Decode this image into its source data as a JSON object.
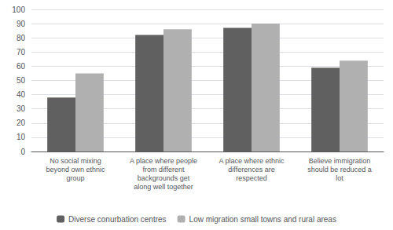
{
  "chart_data": {
    "type": "bar",
    "categories": [
      "No social mixing\nbeyond own ethnic\ngroup",
      "A place where people\nfrom different\nbackgrounds get\nalong well together",
      "A place where ethnic\ndifferences are\nrespected",
      "Believe immigration\nshould be reduced a\nlot"
    ],
    "series": [
      {
        "name": "Diverse conurbation centres",
        "color": "#606060",
        "values": [
          38,
          82,
          87,
          59
        ]
      },
      {
        "name": "Low migration small towns and rural areas",
        "color": "#b0b0b0",
        "values": [
          55,
          86,
          90,
          64
        ]
      }
    ],
    "ylim": [
      0,
      100
    ],
    "yticks": [
      0,
      10,
      20,
      30,
      40,
      50,
      60,
      70,
      80,
      90,
      100
    ],
    "grid": true,
    "legend": "bottom"
  }
}
